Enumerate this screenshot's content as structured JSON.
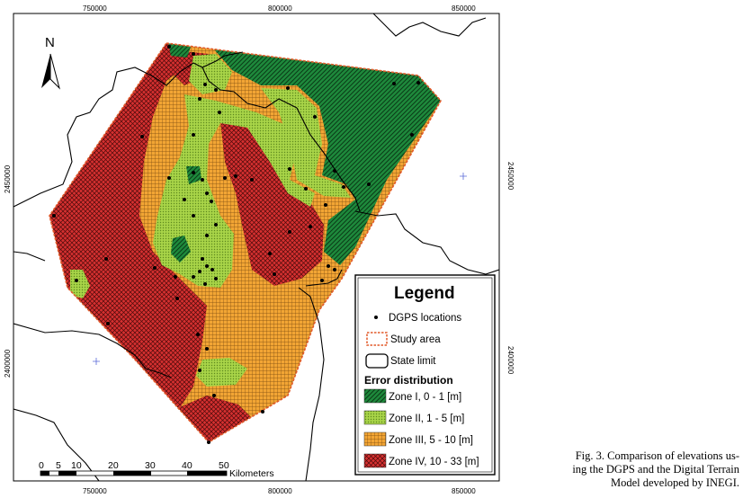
{
  "map": {
    "north_label": "N",
    "x_ticks_top": [
      "750000",
      "800000",
      "850000"
    ],
    "x_ticks_bottom": [
      "750000",
      "800000",
      "850000"
    ],
    "y_ticks_left": [
      "2450000",
      "2400000"
    ],
    "y_ticks_right": [
      "2450000",
      "2400000"
    ]
  },
  "legend": {
    "title": "Legend",
    "dgps": "DGPS locations",
    "study_area": "Study area",
    "state_limit": "State limit",
    "error_heading": "Error distribution",
    "zones": [
      {
        "label": "Zone I,  0 - 1 [m]",
        "color": "#1e8a3c"
      },
      {
        "label": "Zone II,  1 - 5 [m]",
        "color": "#9ccc3c"
      },
      {
        "label": "Zone III,  5 - 10 [m]",
        "color": "#f0a030"
      },
      {
        "label": "Zone IV,  10 - 33 [m]",
        "color": "#d42828"
      }
    ]
  },
  "scale": {
    "ticks": [
      "0",
      "5",
      "10",
      "20",
      "30",
      "40",
      "50"
    ],
    "unit": "Kilometers"
  },
  "caption": {
    "line1": "Fig. 3. Comparison of elevations us-",
    "line2": "ing the DGPS and the Digital Terrain",
    "line3": "Model developed by INEGI."
  }
}
